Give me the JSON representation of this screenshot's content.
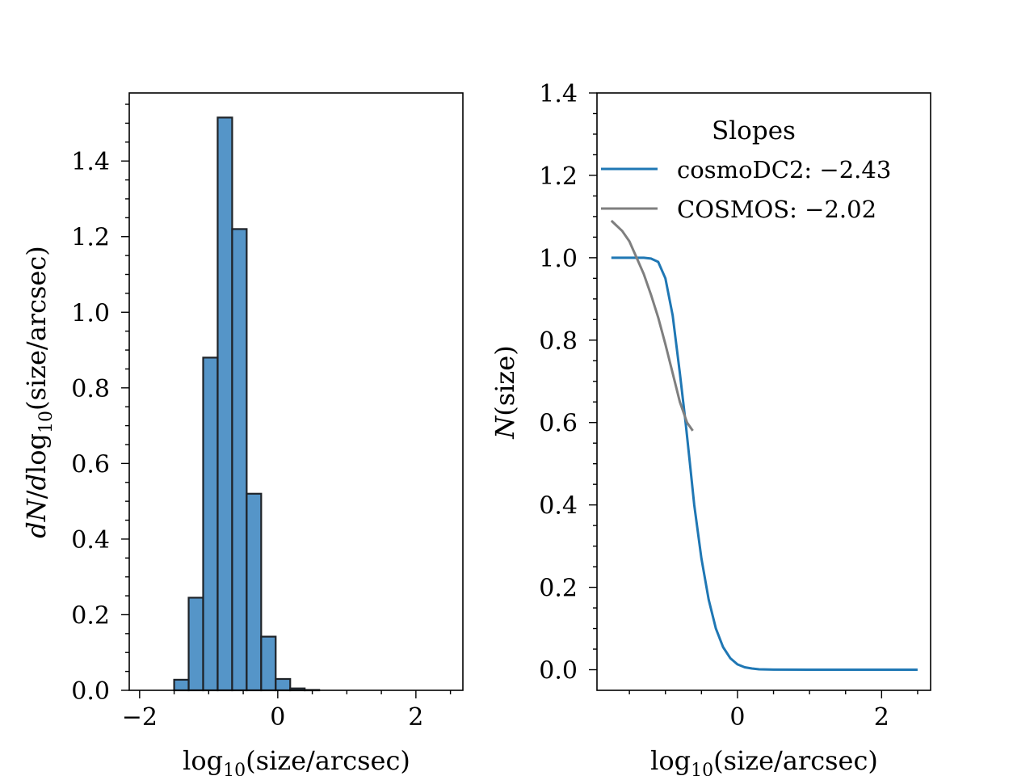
{
  "chart_data": [
    {
      "type": "bar",
      "subtype": "histogram",
      "bin_width": 0.21,
      "bin_left_edges": [
        -1.5,
        -1.29,
        -1.08,
        -0.87,
        -0.66,
        -0.45,
        -0.24,
        -0.03,
        0.18,
        0.39
      ],
      "values": [
        0.028,
        0.245,
        0.88,
        1.515,
        1.22,
        0.52,
        0.142,
        0.03,
        0.005,
        0.001
      ],
      "xlim": [
        -2.15,
        2.68
      ],
      "ylim": [
        0,
        1.58
      ],
      "xticks": [
        -2,
        0,
        2
      ],
      "xtick_labels": [
        "−2",
        "0",
        "2"
      ],
      "yticks": [
        0.0,
        0.2,
        0.4,
        0.6,
        0.8,
        1.0,
        1.2,
        1.4
      ],
      "ytick_labels": [
        "0.0",
        "0.2",
        "0.4",
        "0.6",
        "0.8",
        "1.0",
        "1.2",
        "1.4"
      ],
      "xlabel": {
        "prefix": "log",
        "sub": "10",
        "suffix": "(size/arcsec)"
      },
      "ylabel": {
        "italic1": "dN",
        "mid": "/",
        "italic2": "d",
        "log": "log",
        "sub": "10",
        "suffix": "(size/arcsec)"
      }
    },
    {
      "type": "line",
      "xlim": [
        -1.95,
        2.68
      ],
      "ylim": [
        -0.05,
        1.4
      ],
      "xticks": [
        0,
        2
      ],
      "xtick_labels": [
        "0",
        "2"
      ],
      "yticks": [
        0.0,
        0.2,
        0.4,
        0.6,
        0.8,
        1.0,
        1.2,
        1.4
      ],
      "ytick_labels": [
        "0.0",
        "0.2",
        "0.4",
        "0.6",
        "0.8",
        "1.0",
        "1.2",
        "1.4"
      ],
      "xlabel": {
        "prefix": "log",
        "sub": "10",
        "suffix": "(size/arcsec)"
      },
      "ylabel": {
        "italic": "N",
        "suffix": "(size)"
      },
      "legend": {
        "title": "Slopes",
        "position": "upper-center"
      },
      "series": [
        {
          "name": "cosmoDC2: −2.43",
          "color": "#1f77b4",
          "x": [
            -1.75,
            -1.5,
            -1.3,
            -1.2,
            -1.1,
            -1.0,
            -0.9,
            -0.8,
            -0.72,
            -0.66,
            -0.6,
            -0.5,
            -0.4,
            -0.3,
            -0.2,
            -0.1,
            0.0,
            0.1,
            0.2,
            0.3,
            0.5,
            1.0,
            1.5,
            2.0,
            2.5
          ],
          "y": [
            1.0,
            1.0,
            1.0,
            0.998,
            0.99,
            0.95,
            0.86,
            0.72,
            0.6,
            0.5,
            0.4,
            0.27,
            0.17,
            0.1,
            0.055,
            0.028,
            0.013,
            0.006,
            0.003,
            0.001,
            0.0003,
            0.0,
            0.0,
            0.0,
            0.0
          ]
        },
        {
          "name": "COSMOS: −2.02",
          "color": "#7f7f7f",
          "x": [
            -1.75,
            -1.6,
            -1.5,
            -1.4,
            -1.3,
            -1.2,
            -1.1,
            -1.0,
            -0.9,
            -0.8,
            -0.7,
            -0.62
          ],
          "y": [
            1.09,
            1.065,
            1.04,
            1.0,
            0.96,
            0.91,
            0.855,
            0.79,
            0.72,
            0.65,
            0.6,
            0.58
          ]
        }
      ]
    }
  ]
}
